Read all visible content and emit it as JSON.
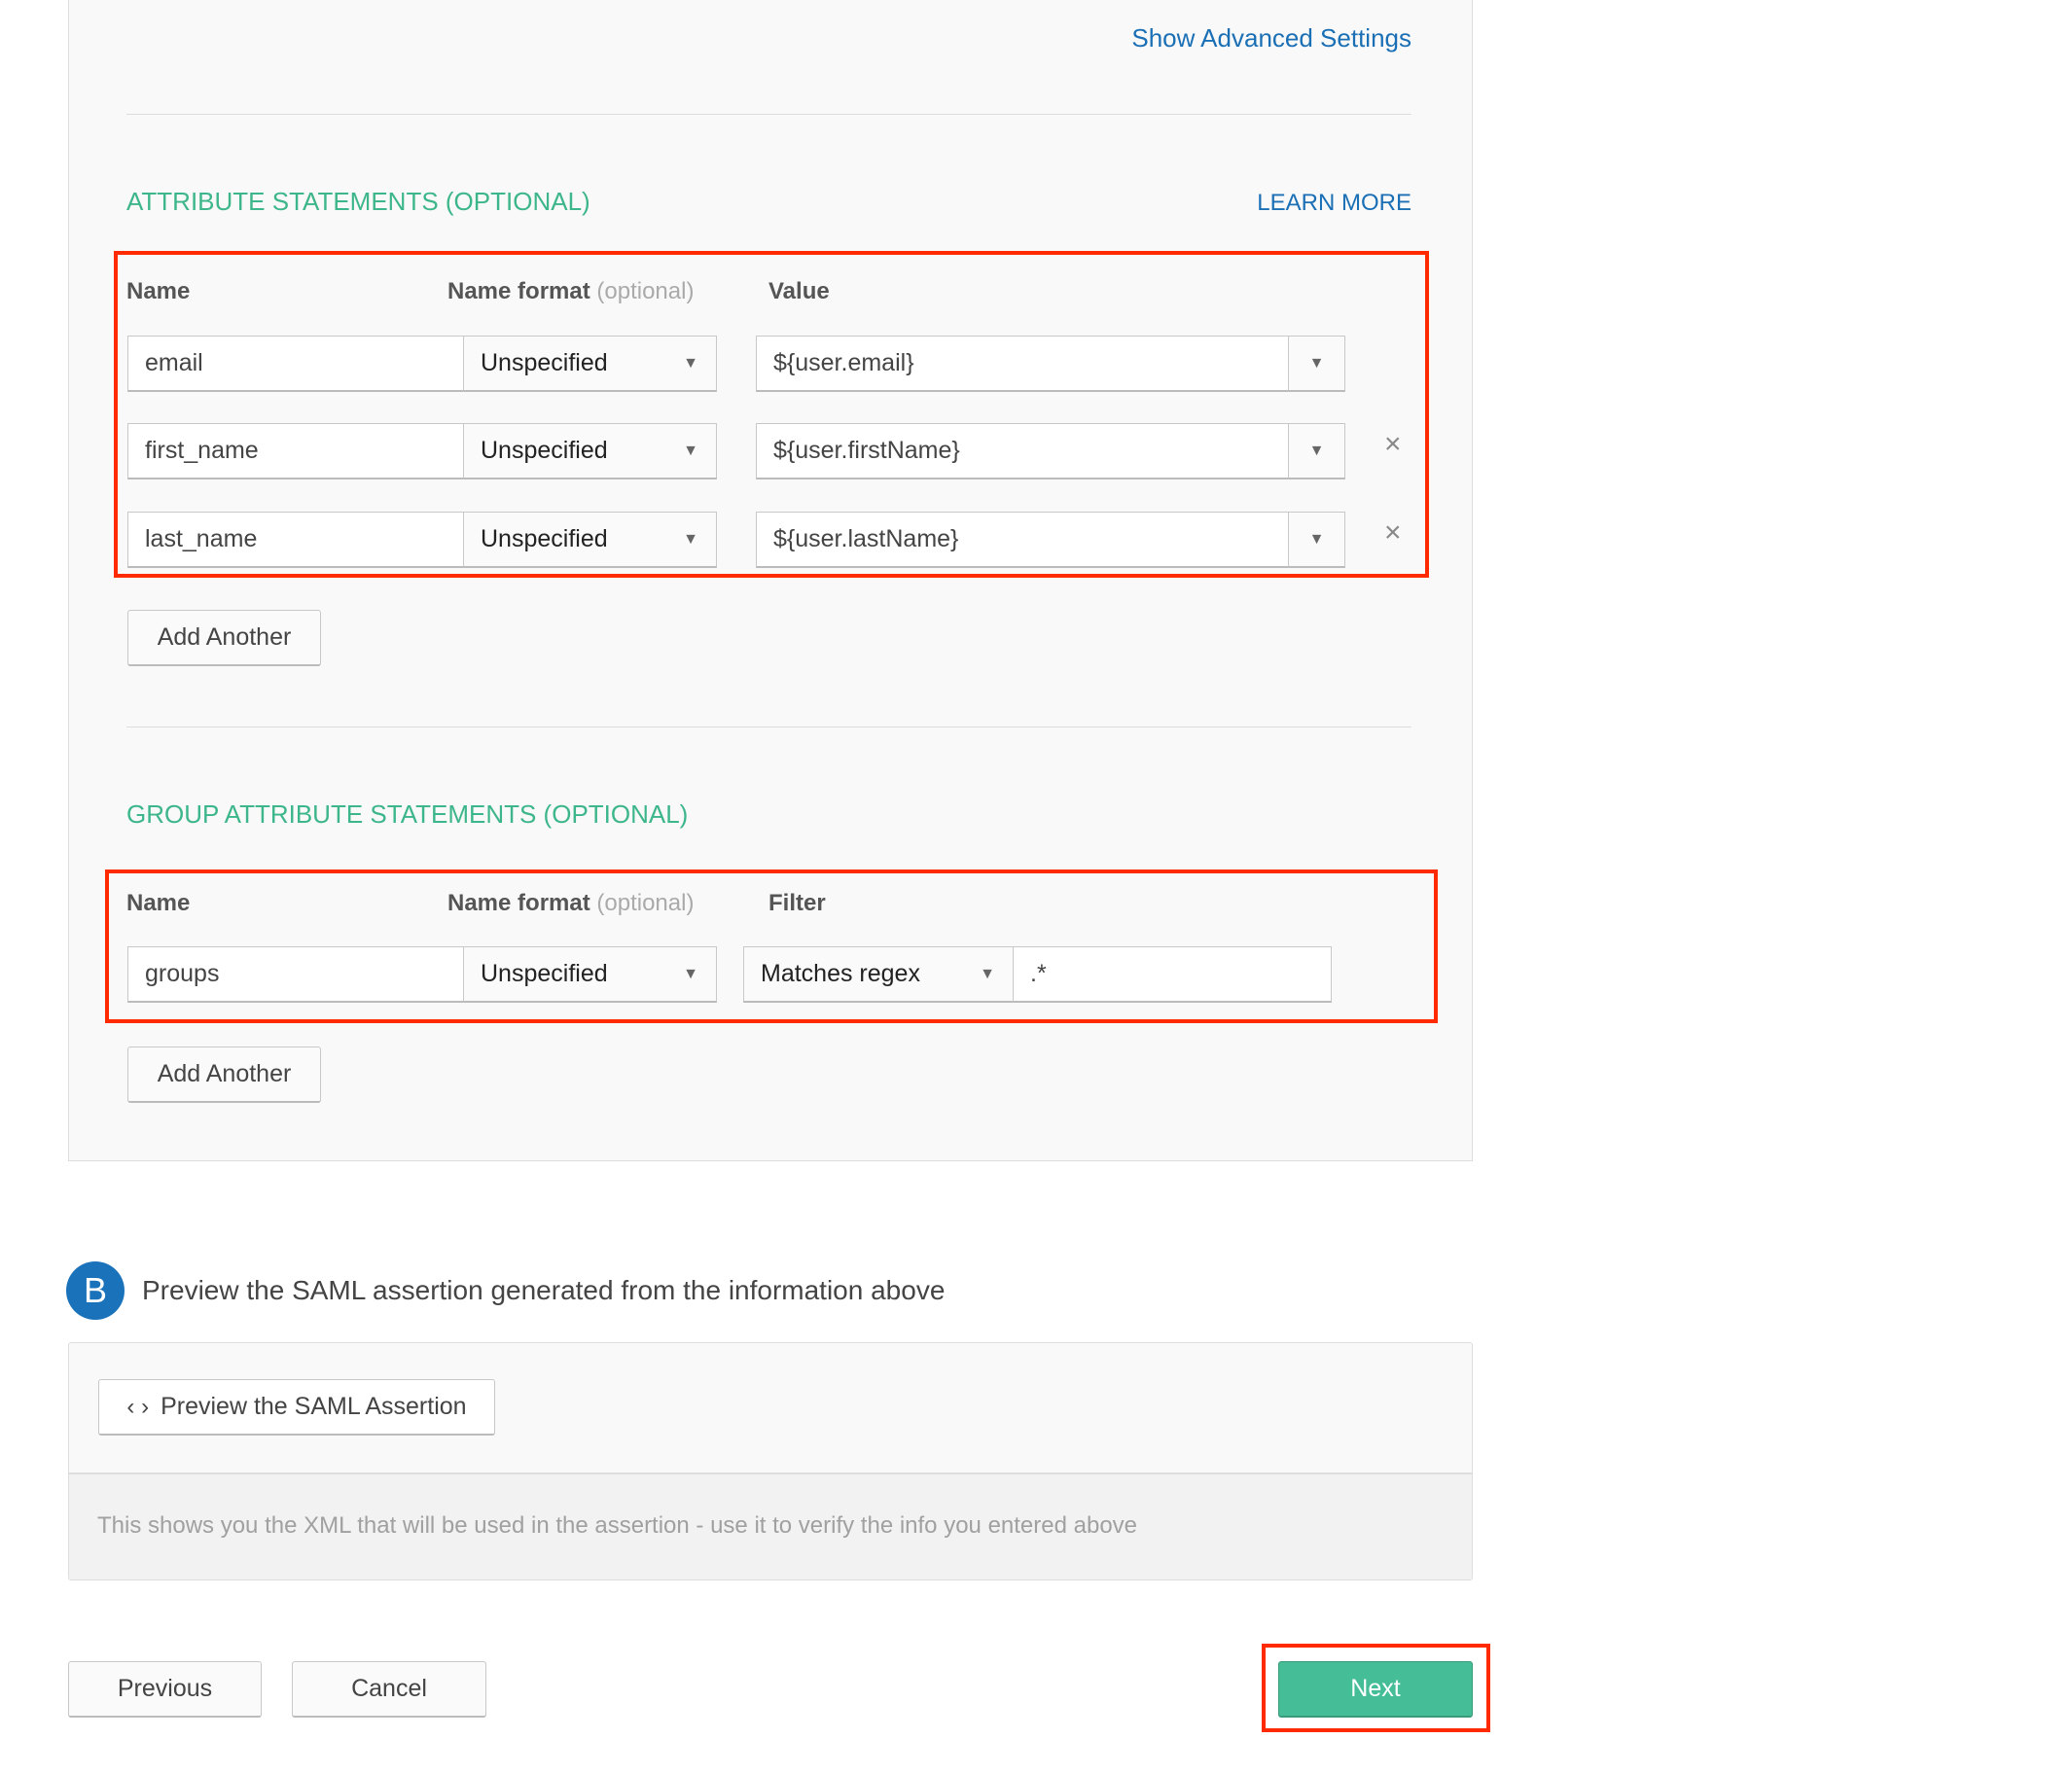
{
  "advanced_link": "Show Advanced Settings",
  "attributes": {
    "title": "ATTRIBUTE STATEMENTS (OPTIONAL)",
    "learn_more": "LEARN MORE",
    "headers": {
      "name": "Name",
      "name_format": "Name format",
      "optional": "(optional)",
      "value": "Value"
    },
    "rows": [
      {
        "name": "email",
        "format": "Unspecified",
        "value": "${user.email}",
        "removable": false
      },
      {
        "name": "first_name",
        "format": "Unspecified",
        "value": "${user.firstName}",
        "removable": true
      },
      {
        "name": "last_name",
        "format": "Unspecified",
        "value": "${user.lastName}",
        "removable": true
      }
    ],
    "add_label": "Add Another"
  },
  "groups": {
    "title": "GROUP ATTRIBUTE STATEMENTS (OPTIONAL)",
    "headers": {
      "name": "Name",
      "name_format": "Name format",
      "optional": "(optional)",
      "filter": "Filter"
    },
    "row": {
      "name": "groups",
      "format": "Unspecified",
      "filter_type": "Matches regex",
      "filter_value": ".*"
    },
    "add_label": "Add Another"
  },
  "preview": {
    "step": "B",
    "heading": "Preview the SAML assertion generated from the information above",
    "button": "Preview the SAML Assertion",
    "help": "This shows you the XML that will be used in the assertion - use it to verify the info you entered above"
  },
  "footer": {
    "previous": "Previous",
    "cancel": "Cancel",
    "next": "Next"
  },
  "colors": {
    "accent_green": "#45bd96",
    "link_blue": "#1a6fb5",
    "step_blue": "#1a72bb",
    "highlight_red": "#ff2a00"
  }
}
